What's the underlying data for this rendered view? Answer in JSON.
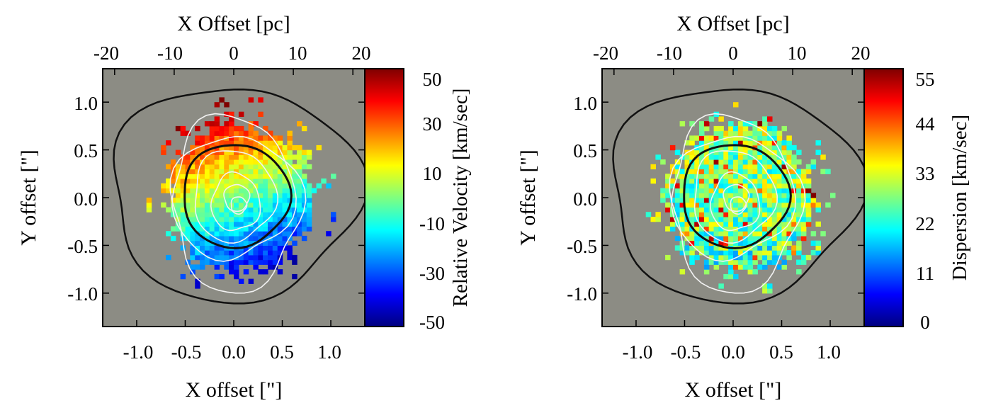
{
  "colors": {
    "background_gray": "#8c8c84",
    "contour_black": "#111111",
    "contour_white": "#f2f2f2",
    "colormap": [
      "#00007f",
      "#0000ff",
      "#007fff",
      "#00ffff",
      "#7fff7f",
      "#ffff00",
      "#ff7f00",
      "#ff0000",
      "#7f0000"
    ]
  },
  "chart_data": [
    {
      "type": "heatmap",
      "panel": "velocity",
      "title": "",
      "xlabel": "X offset [\"]",
      "ylabel": "Y offset [\"]",
      "top_xlabel": "X Offset [pc]",
      "colorbar_label": "Relative Velocity [km/sec]",
      "xlim": [
        -1.35,
        1.35
      ],
      "ylim": [
        -1.35,
        1.35
      ],
      "top_xlim_pc": [
        -22,
        22
      ],
      "x_ticks": [
        "-1.0",
        "-0.5",
        "0.0",
        "0.5",
        "1.0"
      ],
      "x_tick_values": [
        -1.0,
        -0.5,
        0.0,
        0.5,
        1.0
      ],
      "y_ticks": [
        "1.0",
        "0.5",
        "0.0",
        "-0.5",
        "-1.0"
      ],
      "y_tick_values": [
        1.0,
        0.5,
        0.0,
        -0.5,
        -1.0
      ],
      "top_ticks": [
        "-20",
        "-10",
        "0",
        "10",
        "20"
      ],
      "top_tick_values": [
        -20,
        -10,
        0,
        10,
        20
      ],
      "colorbar_ticks": [
        "50",
        "30",
        "10",
        "-10",
        "-30",
        "-50"
      ],
      "colorbar_tick_values": [
        50,
        30,
        10,
        -10,
        -30,
        -50
      ],
      "color_range": [
        -55,
        55
      ],
      "map_model": "rotation",
      "center": [
        0.0,
        0.0
      ],
      "velocity_gradient_kms_per_arcsec": 55,
      "position_angle_deg": -20,
      "grid": false
    },
    {
      "type": "heatmap",
      "panel": "dispersion",
      "title": "",
      "xlabel": "X offset [\"]",
      "ylabel": "Y offset [\"]",
      "top_xlabel": "X Offset [pc]",
      "colorbar_label": "Dispersion [km/sec]",
      "xlim": [
        -1.35,
        1.35
      ],
      "ylim": [
        -1.35,
        1.35
      ],
      "top_xlim_pc": [
        -22,
        22
      ],
      "x_ticks": [
        "-1.0",
        "-0.5",
        "0.0",
        "0.5",
        "1.0"
      ],
      "x_tick_values": [
        -1.0,
        -0.5,
        0.0,
        0.5,
        1.0
      ],
      "y_ticks": [
        "1.0",
        "0.5",
        "0.0",
        "-0.5",
        "-1.0"
      ],
      "y_tick_values": [
        1.0,
        0.5,
        0.0,
        -0.5,
        -1.0
      ],
      "top_ticks": [
        "-20",
        "-10",
        "0",
        "10",
        "20"
      ],
      "top_tick_values": [
        -20,
        -10,
        0,
        10,
        20
      ],
      "colorbar_ticks": [
        "55",
        "44",
        "33",
        "22",
        "11",
        "0"
      ],
      "colorbar_tick_values": [
        55,
        44,
        33,
        22,
        11,
        0
      ],
      "color_range": [
        0,
        55
      ],
      "map_model": "dispersion",
      "center": [
        0.0,
        0.0
      ],
      "typical_dispersion_kms": 28,
      "grid": false
    }
  ]
}
